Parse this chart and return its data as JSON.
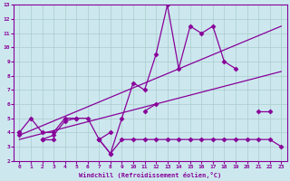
{
  "background_color": "#cce8ee",
  "grid_color": "#aacccc",
  "line_color": "#880099",
  "xlabel": "Windchill (Refroidissement éolien,°C)",
  "xlim": [
    -0.5,
    23.5
  ],
  "ylim": [
    2,
    13
  ],
  "xticks": [
    0,
    1,
    2,
    3,
    4,
    5,
    6,
    7,
    8,
    9,
    10,
    11,
    12,
    13,
    14,
    15,
    16,
    17,
    18,
    19,
    20,
    21,
    22,
    23
  ],
  "yticks": [
    2,
    3,
    4,
    5,
    6,
    7,
    8,
    9,
    10,
    11,
    12,
    13
  ],
  "line_a_x": [
    0,
    1,
    2,
    3,
    4,
    5,
    6,
    7,
    8,
    9,
    10,
    11,
    12,
    13,
    14,
    15,
    16,
    17,
    18,
    19,
    20,
    21,
    22,
    23
  ],
  "line_a_y": [
    4,
    5,
    4,
    4,
    5,
    5,
    5,
    3.5,
    2.5,
    5,
    7.5,
    7,
    9.5,
    13,
    8.5,
    11.5,
    11,
    11.5,
    9,
    8.5,
    null,
    5.5,
    5.5,
    null
  ],
  "line_b_x": [
    0,
    1,
    2,
    3,
    4,
    5,
    6,
    7,
    8,
    9,
    10,
    11,
    12,
    13,
    14,
    15,
    16,
    17,
    18,
    19,
    20,
    21,
    22,
    23
  ],
  "line_b_y": [
    4,
    null,
    3.5,
    3.8,
    4.8,
    5,
    null,
    3.5,
    4,
    null,
    null,
    5.5,
    6,
    null,
    null,
    null,
    null,
    null,
    null,
    null,
    null,
    null,
    null,
    null
  ],
  "line_c_x": [
    0,
    1,
    2,
    3,
    4,
    5,
    6,
    7,
    8,
    9,
    10,
    11,
    12,
    13,
    14,
    15,
    16,
    17,
    18,
    19,
    20,
    21,
    22,
    23
  ],
  "line_c_y": [
    3.8,
    null,
    3.5,
    3.5,
    null,
    null,
    null,
    3.5,
    2.5,
    3.5,
    3.5,
    3.5,
    3.5,
    3.5,
    3.5,
    3.5,
    3.5,
    3.5,
    3.5,
    3.5,
    3.5,
    3.5,
    3.5,
    3.0
  ],
  "trend1_x": [
    0,
    23
  ],
  "trend1_y": [
    3.8,
    11.5
  ],
  "trend2_x": [
    0,
    23
  ],
  "trend2_y": [
    3.5,
    8.3
  ]
}
